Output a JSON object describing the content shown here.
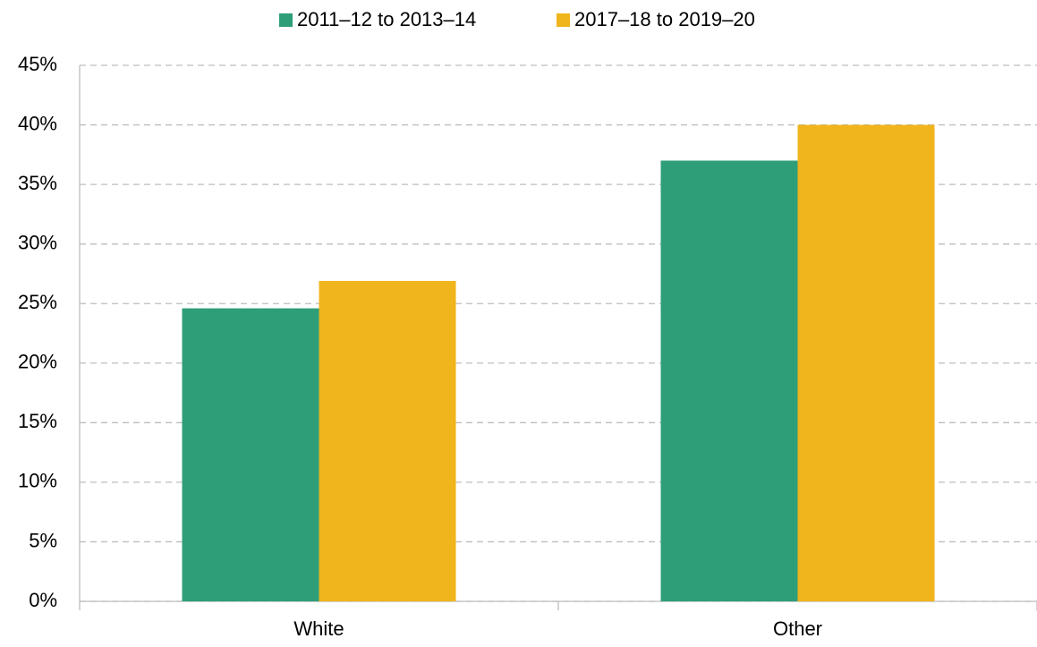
{
  "chart_data": {
    "type": "bar",
    "categories": [
      "White",
      "Other"
    ],
    "series": [
      {
        "name": "2011–12 to 2013–14",
        "color": "#2e9e78",
        "values": [
          24.6,
          37.0
        ]
      },
      {
        "name": "2017–18 to 2019–20",
        "color": "#f0b41c",
        "values": [
          26.9,
          40.0
        ]
      }
    ],
    "ylim": [
      0,
      45
    ],
    "yticks": [
      {
        "value": 0,
        "label": "0%"
      },
      {
        "value": 5,
        "label": "5%"
      },
      {
        "value": 10,
        "label": "10%"
      },
      {
        "value": 15,
        "label": "15%"
      },
      {
        "value": 20,
        "label": "20%"
      },
      {
        "value": 25,
        "label": "25%"
      },
      {
        "value": 30,
        "label": "30%"
      },
      {
        "value": 35,
        "label": "35%"
      },
      {
        "value": 40,
        "label": "40%"
      },
      {
        "value": 45,
        "label": "45%"
      }
    ],
    "grid": true
  }
}
